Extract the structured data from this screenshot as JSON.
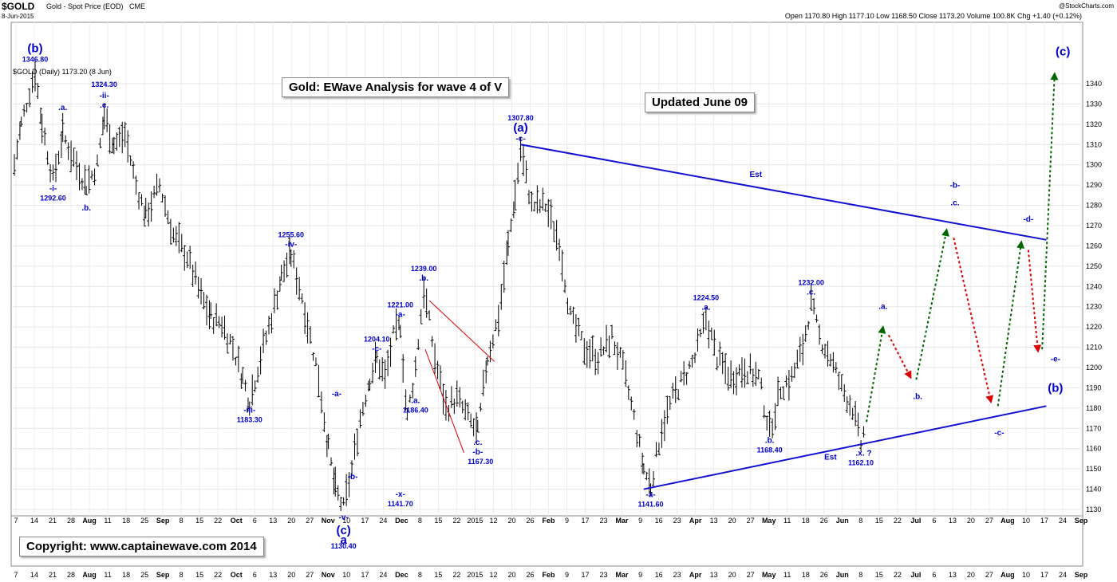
{
  "header": {
    "symbol": "$GOLD",
    "description": "Gold - Spot Price (EOD)",
    "exchange": "CME",
    "date": "8-Jun-2015",
    "brand": "@StockCharts.com",
    "quote": "Open 1170.80  High 1177.10  Low 1168.50  Close 1173.20  Volume 100.8K  Chg +1.40 (+0.12%)",
    "legend": "$GOLD (Daily) 1173.20 (8 Jun)"
  },
  "annotations": {
    "title_box": "Gold: EWave Analysis for wave 4 of V",
    "updated_box": "Updated June 09",
    "copyright_box": "Copyright:   www.captainewave.com 2014"
  },
  "colors": {
    "wave_label": "#0000cc",
    "trendline": "#1010d0",
    "up_arrow": "#006600",
    "down_arrow": "#dd0000",
    "wedge": "#dd0000",
    "bars": "#000000"
  },
  "chart_data": {
    "type": "ohlc",
    "title": "Gold: EWave Analysis for wave 4 of V",
    "ylim": [
      1125,
      1350
    ],
    "y_ticks": [
      1130,
      1140,
      1150,
      1160,
      1170,
      1180,
      1190,
      1200,
      1210,
      1220,
      1230,
      1240,
      1250,
      1260,
      1270,
      1280,
      1290,
      1300,
      1310,
      1320,
      1330,
      1340
    ],
    "x_ticks": [
      "7",
      "14",
      "21",
      "28",
      "Aug",
      "11",
      "18",
      "25",
      "Sep",
      "8",
      "15",
      "22",
      "Oct",
      "6",
      "13",
      "20",
      "27",
      "Nov",
      "10",
      "17",
      "24",
      "Dec",
      "8",
      "15",
      "22",
      "2015",
      "12",
      "20",
      "26",
      "Feb",
      "9",
      "17",
      "23",
      "Mar",
      "9",
      "16",
      "23",
      "Apr",
      "13",
      "20",
      "27",
      "May",
      "11",
      "18",
      "26",
      "Jun",
      "8",
      "15",
      "22",
      "Jul",
      "6",
      "13",
      "20",
      "27",
      "Aug",
      "10",
      "17",
      "24",
      "Sep"
    ],
    "price_path": [
      [
        0,
        1300
      ],
      [
        5,
        1320
      ],
      [
        15,
        1346.8
      ],
      [
        20,
        1320
      ],
      [
        28,
        1292.6
      ],
      [
        35,
        1315
      ],
      [
        45,
        1300
      ],
      [
        52,
        1290
      ],
      [
        60,
        1300
      ],
      [
        65,
        1324.3
      ],
      [
        72,
        1310
      ],
      [
        80,
        1315
      ],
      [
        88,
        1290
      ],
      [
        95,
        1275
      ],
      [
        105,
        1290
      ],
      [
        115,
        1265
      ],
      [
        125,
        1255
      ],
      [
        135,
        1235
      ],
      [
        142,
        1225
      ],
      [
        150,
        1222
      ],
      [
        158,
        1210
      ],
      [
        165,
        1195
      ],
      [
        170,
        1183.3
      ],
      [
        178,
        1205
      ],
      [
        186,
        1225
      ],
      [
        193,
        1245
      ],
      [
        200,
        1255.6
      ],
      [
        208,
        1235
      ],
      [
        214,
        1215
      ],
      [
        220,
        1195
      ],
      [
        227,
        1160
      ],
      [
        232,
        1140
      ],
      [
        238,
        1130.4
      ],
      [
        244,
        1150
      ],
      [
        250,
        1175
      ],
      [
        257,
        1195
      ],
      [
        262,
        1204.1
      ],
      [
        268,
        1195
      ],
      [
        274,
        1215
      ],
      [
        279,
        1221
      ],
      [
        284,
        1175
      ],
      [
        290,
        1200
      ],
      [
        296,
        1239
      ],
      [
        304,
        1205
      ],
      [
        312,
        1180
      ],
      [
        320,
        1185
      ],
      [
        328,
        1175
      ],
      [
        335,
        1167.3
      ],
      [
        342,
        1205
      ],
      [
        350,
        1225
      ],
      [
        357,
        1260
      ],
      [
        362,
        1285
      ],
      [
        366,
        1307.8
      ],
      [
        374,
        1280
      ],
      [
        384,
        1280
      ],
      [
        394,
        1262
      ],
      [
        402,
        1225
      ],
      [
        412,
        1210
      ],
      [
        422,
        1205
      ],
      [
        432,
        1215
      ],
      [
        440,
        1200
      ],
      [
        448,
        1175
      ],
      [
        455,
        1150
      ],
      [
        460,
        1141.6
      ],
      [
        468,
        1170
      ],
      [
        476,
        1185
      ],
      [
        484,
        1195
      ],
      [
        492,
        1205
      ],
      [
        500,
        1224.5
      ],
      [
        508,
        1205
      ],
      [
        518,
        1195
      ],
      [
        528,
        1200
      ],
      [
        538,
        1195
      ],
      [
        546,
        1168.4
      ],
      [
        554,
        1190
      ],
      [
        562,
        1195
      ],
      [
        570,
        1210
      ],
      [
        576,
        1232
      ],
      [
        582,
        1215
      ],
      [
        590,
        1205
      ],
      [
        598,
        1190
      ],
      [
        606,
        1180
      ],
      [
        612,
        1162.1
      ],
      [
        616,
        1173.2
      ]
    ],
    "projection": [
      {
        "color": "green",
        "from": [
          616,
          1173.2
        ],
        "to": [
          628,
          1220
        ]
      },
      {
        "color": "red",
        "from": [
          632,
          1216
        ],
        "to": [
          648,
          1195
        ]
      },
      {
        "color": "green",
        "from": [
          652,
          1194
        ],
        "to": [
          674,
          1268
        ]
      },
      {
        "color": "red",
        "from": [
          679,
          1264
        ],
        "to": [
          706,
          1183
        ]
      },
      {
        "color": "green",
        "from": [
          711,
          1181
        ],
        "to": [
          728,
          1262
        ]
      },
      {
        "color": "red",
        "from": [
          733,
          1258
        ],
        "to": [
          740,
          1208
        ]
      },
      {
        "color": "green",
        "from": [
          743,
          1209
        ],
        "to": [
          752,
          1345
        ]
      }
    ],
    "trendlines": [
      {
        "label": "Est",
        "from": [
          366,
          1310
        ],
        "to": [
          746,
          1263
        ]
      },
      {
        "label": "Est",
        "from": [
          455,
          1140
        ],
        "to": [
          746,
          1181
        ]
      }
    ],
    "wedge": [
      {
        "from": [
          300,
          1233
        ],
        "to": [
          347,
          1203
        ]
      },
      {
        "from": [
          297,
          1209
        ],
        "to": [
          325,
          1158
        ]
      }
    ],
    "wave_labels": [
      {
        "text": "1346.80",
        "x": 15,
        "y": 1346.8,
        "kind": "price",
        "pos": "above"
      },
      {
        "text": "(b)",
        "x": 15,
        "y": 1346.8,
        "kind": "big",
        "pos": "above2"
      },
      {
        "text": ".a.",
        "x": 35,
        "y": 1323,
        "kind": "wave",
        "pos": "above"
      },
      {
        "text": "-i-",
        "x": 28,
        "y": 1292.6,
        "kind": "wave",
        "pos": "below"
      },
      {
        "text": "1292.60",
        "x": 28,
        "y": 1292.6,
        "kind": "price",
        "pos": "below2"
      },
      {
        "text": "1324.30",
        "x": 65,
        "y": 1324.3,
        "kind": "price",
        "pos": "above3"
      },
      {
        "text": "-ii-",
        "x": 65,
        "y": 1324.3,
        "kind": "wave",
        "pos": "above2"
      },
      {
        "text": ".c.",
        "x": 65,
        "y": 1324.3,
        "kind": "wave",
        "pos": "above"
      },
      {
        "text": ".b.",
        "x": 52,
        "y": 1283,
        "kind": "wave",
        "pos": "below"
      },
      {
        "text": "-iii-",
        "x": 170,
        "y": 1183.3,
        "kind": "wave",
        "pos": "below"
      },
      {
        "text": "1183.30",
        "x": 170,
        "y": 1183.3,
        "kind": "price",
        "pos": "below2"
      },
      {
        "text": "1255.60",
        "x": 200,
        "y": 1255.6,
        "kind": "price",
        "pos": "above2"
      },
      {
        "text": "-iv-",
        "x": 200,
        "y": 1255.6,
        "kind": "wave",
        "pos": "above"
      },
      {
        "text": "-a-",
        "x": 233,
        "y": 1182,
        "kind": "wave",
        "pos": "above"
      },
      {
        "text": "-b-",
        "x": 240,
        "y": 1145,
        "kind": "wave",
        "pos": "right"
      },
      {
        "text": "-v-",
        "x": 238,
        "y": 1130.4,
        "kind": "wave",
        "pos": "below"
      },
      {
        "text": "(c)",
        "x": 238,
        "y": 1130.4,
        "kind": "big",
        "pos": "below2"
      },
      {
        "text": "a",
        "x": 238,
        "y": 1130.4,
        "kind": "big",
        "pos": "below3"
      },
      {
        "text": "1130.40",
        "x": 238,
        "y": 1130.4,
        "kind": "price",
        "pos": "below4"
      },
      {
        "text": "1204.10",
        "x": 262,
        "y": 1204.1,
        "kind": "price",
        "pos": "above2"
      },
      {
        "text": "-c-",
        "x": 262,
        "y": 1204.1,
        "kind": "wave",
        "pos": "above"
      },
      {
        "text": "1221.00",
        "x": 279,
        "y": 1221,
        "kind": "price",
        "pos": "above2"
      },
      {
        "text": "-a-",
        "x": 279,
        "y": 1221,
        "kind": "wave",
        "pos": "above"
      },
      {
        "text": "-x-",
        "x": 279,
        "y": 1141.7,
        "kind": "wave",
        "pos": "below"
      },
      {
        "text": "1141.70",
        "x": 279,
        "y": 1141.7,
        "kind": "price",
        "pos": "below2"
      },
      {
        "text": ".a.",
        "x": 290,
        "y": 1188,
        "kind": "wave",
        "pos": "below"
      },
      {
        "text": "1186.40",
        "x": 290,
        "y": 1188,
        "kind": "price",
        "pos": "below2"
      },
      {
        "text": "1239.00",
        "x": 296,
        "y": 1239,
        "kind": "price",
        "pos": "above2"
      },
      {
        "text": ".b.",
        "x": 296,
        "y": 1239,
        "kind": "wave",
        "pos": "above"
      },
      {
        "text": ".c.",
        "x": 335,
        "y": 1167.3,
        "kind": "wave",
        "pos": "below"
      },
      {
        "text": "-b-",
        "x": 335,
        "y": 1167.3,
        "kind": "wave",
        "pos": "below2"
      },
      {
        "text": "1167.30",
        "x": 337,
        "y": 1167.3,
        "kind": "price",
        "pos": "below3"
      },
      {
        "text": "1307.80",
        "x": 366,
        "y": 1307.8,
        "kind": "price",
        "pos": "above3"
      },
      {
        "text": "(a)",
        "x": 366,
        "y": 1307.8,
        "kind": "big",
        "pos": "above2"
      },
      {
        "text": "-c-",
        "x": 366,
        "y": 1307.8,
        "kind": "wave",
        "pos": "above"
      },
      {
        "text": "-a-",
        "x": 460,
        "y": 1141.6,
        "kind": "wave",
        "pos": "below"
      },
      {
        "text": "1141.60",
        "x": 460,
        "y": 1141.6,
        "kind": "price",
        "pos": "below2"
      },
      {
        "text": "1224.50",
        "x": 500,
        "y": 1224.5,
        "kind": "price",
        "pos": "above2"
      },
      {
        "text": ".a.",
        "x": 500,
        "y": 1224.5,
        "kind": "wave",
        "pos": "above"
      },
      {
        "text": ".b.",
        "x": 546,
        "y": 1168.4,
        "kind": "wave",
        "pos": "below"
      },
      {
        "text": "1168.40",
        "x": 546,
        "y": 1168.4,
        "kind": "price",
        "pos": "below2"
      },
      {
        "text": "1232.00",
        "x": 576,
        "y": 1232,
        "kind": "price",
        "pos": "above2"
      },
      {
        "text": ".c.",
        "x": 576,
        "y": 1232,
        "kind": "wave",
        "pos": "above"
      },
      {
        "text": ".x. ?",
        "x": 614,
        "y": 1162.1,
        "kind": "wave",
        "pos": "below"
      },
      {
        "text": "1162.10",
        "x": 612,
        "y": 1162.1,
        "kind": "price",
        "pos": "below2"
      },
      {
        "text": "Est",
        "x": 590,
        "y": 1160,
        "kind": "wave",
        "pos": "below"
      },
      {
        "text": "Est",
        "x": 536,
        "y": 1290,
        "kind": "wave",
        "pos": "above"
      },
      {
        "text": ".a.",
        "x": 628,
        "y": 1225,
        "kind": "wave",
        "pos": "above"
      },
      {
        "text": ".b.",
        "x": 653,
        "y": 1190,
        "kind": "wave",
        "pos": "below"
      },
      {
        "text": "-b-",
        "x": 680,
        "y": 1280,
        "kind": "wave",
        "pos": "above2"
      },
      {
        "text": ".c.",
        "x": 680,
        "y": 1276,
        "kind": "wave",
        "pos": "above"
      },
      {
        "text": "-c-",
        "x": 712,
        "y": 1172,
        "kind": "wave",
        "pos": "below"
      },
      {
        "text": "-d-",
        "x": 733,
        "y": 1268,
        "kind": "wave",
        "pos": "above"
      },
      {
        "text": "-e-",
        "x": 748,
        "y": 1203,
        "kind": "wave",
        "pos": "right"
      },
      {
        "text": "(b)",
        "x": 748,
        "y": 1195,
        "kind": "big",
        "pos": "right2"
      },
      {
        "text": "(c)",
        "x": 758,
        "y": 1350,
        "kind": "big",
        "pos": "above"
      }
    ]
  }
}
